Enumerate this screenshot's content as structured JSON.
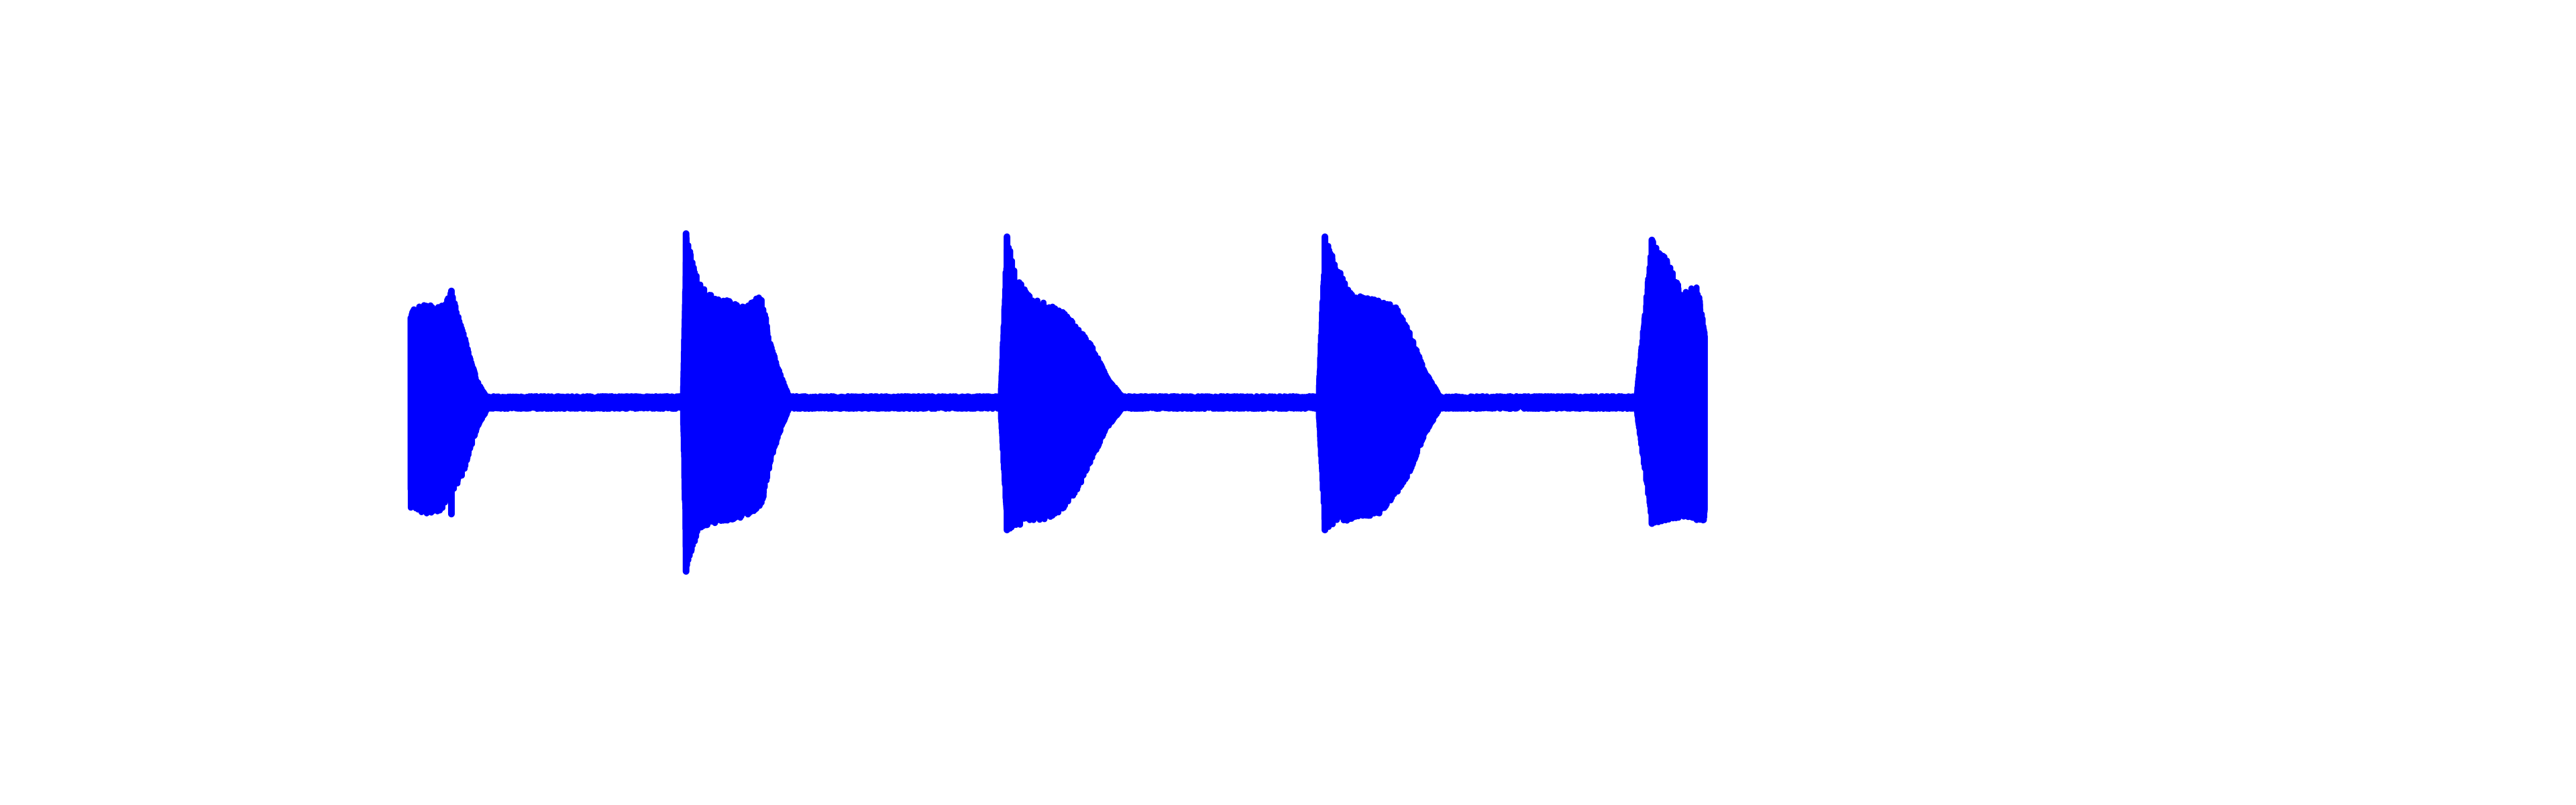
{
  "chart_data": {
    "type": "line",
    "title": "",
    "xlabel": "",
    "ylabel": "",
    "axes_visible": false,
    "grid": false,
    "legend": "none",
    "xlim": [
      0,
      1.2
    ],
    "ylim": [
      -1.0,
      1.0
    ],
    "line_color": "#0000ff",
    "background_color": "#ffffff",
    "series": [
      {
        "bursts": [
          {
            "start": 0.0,
            "end": 0.04,
            "peak_max": 0.35,
            "peak_min": -0.35,
            "envelope_top": [
              [
                0.0,
                0.29
              ],
              [
                0.01,
                0.31
              ],
              [
                0.02,
                0.3
              ],
              [
                0.027,
                0.35
              ],
              [
                0.035,
                0.22
              ],
              [
                0.04,
                0.13
              ],
              [
                0.045,
                0.06
              ],
              [
                0.05,
                0.02
              ]
            ],
            "envelope_bottom": [
              [
                0.0,
                -0.33
              ],
              [
                0.01,
                -0.35
              ],
              [
                0.02,
                -0.34
              ],
              [
                0.027,
                -0.29
              ],
              [
                0.035,
                -0.22
              ],
              [
                0.04,
                -0.14
              ],
              [
                0.045,
                -0.07
              ],
              [
                0.05,
                -0.03
              ]
            ]
          },
          {
            "start": 0.18,
            "end": 0.24,
            "peak_max": 0.53,
            "peak_min": -0.53,
            "envelope_top": [
              [
                0.18,
                0.05
              ],
              [
                0.182,
                0.53
              ],
              [
                0.19,
                0.38
              ],
              [
                0.2,
                0.33
              ],
              [
                0.21,
                0.32
              ],
              [
                0.22,
                0.3
              ],
              [
                0.232,
                0.34
              ],
              [
                0.238,
                0.18
              ],
              [
                0.245,
                0.08
              ],
              [
                0.25,
                0.02
              ]
            ],
            "envelope_bottom": [
              [
                0.18,
                -0.05
              ],
              [
                0.182,
                -0.53
              ],
              [
                0.19,
                -0.4
              ],
              [
                0.2,
                -0.38
              ],
              [
                0.21,
                -0.37
              ],
              [
                0.22,
                -0.36
              ],
              [
                0.232,
                -0.33
              ],
              [
                0.238,
                -0.18
              ],
              [
                0.245,
                -0.08
              ],
              [
                0.25,
                -0.02
              ]
            ]
          },
          {
            "start": 0.39,
            "end": 0.46,
            "peak_max": 0.52,
            "peak_min": -0.4,
            "envelope_top": [
              [
                0.39,
                0.05
              ],
              [
                0.394,
                0.52
              ],
              [
                0.4,
                0.4
              ],
              [
                0.41,
                0.33
              ],
              [
                0.42,
                0.31
              ],
              [
                0.43,
                0.29
              ],
              [
                0.44,
                0.24
              ],
              [
                0.45,
                0.18
              ],
              [
                0.46,
                0.08
              ],
              [
                0.47,
                0.02
              ]
            ],
            "envelope_bottom": [
              [
                0.39,
                -0.05
              ],
              [
                0.394,
                -0.4
              ],
              [
                0.4,
                -0.39
              ],
              [
                0.41,
                -0.37
              ],
              [
                0.42,
                -0.37
              ],
              [
                0.43,
                -0.34
              ],
              [
                0.44,
                -0.28
              ],
              [
                0.45,
                -0.18
              ],
              [
                0.46,
                -0.08
              ],
              [
                0.47,
                -0.02
              ]
            ]
          },
          {
            "start": 0.6,
            "end": 0.67,
            "peak_max": 0.52,
            "peak_min": -0.4,
            "envelope_top": [
              [
                0.6,
                0.05
              ],
              [
                0.604,
                0.52
              ],
              [
                0.61,
                0.45
              ],
              [
                0.62,
                0.35
              ],
              [
                0.63,
                0.33
              ],
              [
                0.64,
                0.32
              ],
              [
                0.65,
                0.31
              ],
              [
                0.66,
                0.22
              ],
              [
                0.67,
                0.1
              ],
              [
                0.68,
                0.02
              ]
            ],
            "envelope_bottom": [
              [
                0.6,
                -0.05
              ],
              [
                0.604,
                -0.4
              ],
              [
                0.61,
                -0.38
              ],
              [
                0.62,
                -0.37
              ],
              [
                0.63,
                -0.36
              ],
              [
                0.64,
                -0.35
              ],
              [
                0.65,
                -0.3
              ],
              [
                0.66,
                -0.22
              ],
              [
                0.67,
                -0.1
              ],
              [
                0.68,
                -0.02
              ]
            ]
          },
          {
            "start": 0.82,
            "end": 0.86,
            "peak_max": 0.51,
            "peak_min": -0.38,
            "envelope_top": [
              [
                0.81,
                0.03
              ],
              [
                0.82,
                0.51
              ],
              [
                0.83,
                0.45
              ],
              [
                0.84,
                0.34
              ],
              [
                0.85,
                0.37
              ],
              [
                0.855,
                0.22
              ]
            ],
            "envelope_bottom": [
              [
                0.81,
                -0.03
              ],
              [
                0.82,
                -0.38
              ],
              [
                0.83,
                -0.37
              ],
              [
                0.84,
                -0.36
              ],
              [
                0.85,
                -0.37
              ],
              [
                0.855,
                -0.37
              ]
            ]
          }
        ],
        "baseline_noise": 0.02,
        "name": ""
      }
    ]
  }
}
